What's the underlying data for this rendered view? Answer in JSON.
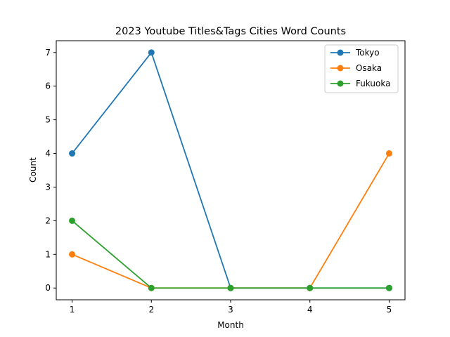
{
  "chart_data": {
    "type": "line",
    "title": "2023 Youtube Titles&Tags Cities Word Counts",
    "xlabel": "Month",
    "ylabel": "Count",
    "x": [
      1,
      2,
      3,
      4,
      5
    ],
    "xticks": [
      "1",
      "2",
      "3",
      "4",
      "5"
    ],
    "yticks": [
      "0",
      "1",
      "2",
      "3",
      "4",
      "5",
      "6",
      "7"
    ],
    "ylim": [
      0,
      7
    ],
    "grid": false,
    "legend_position": "top-right",
    "series": [
      {
        "name": "Tokyo",
        "values": [
          4,
          7,
          0,
          0,
          0
        ],
        "color": "#1f77b4"
      },
      {
        "name": "Osaka",
        "values": [
          1,
          0,
          0,
          0,
          4
        ],
        "color": "#ff7f0e"
      },
      {
        "name": "Fukuoka",
        "values": [
          2,
          0,
          0,
          0,
          0
        ],
        "color": "#2ca02c"
      }
    ]
  }
}
